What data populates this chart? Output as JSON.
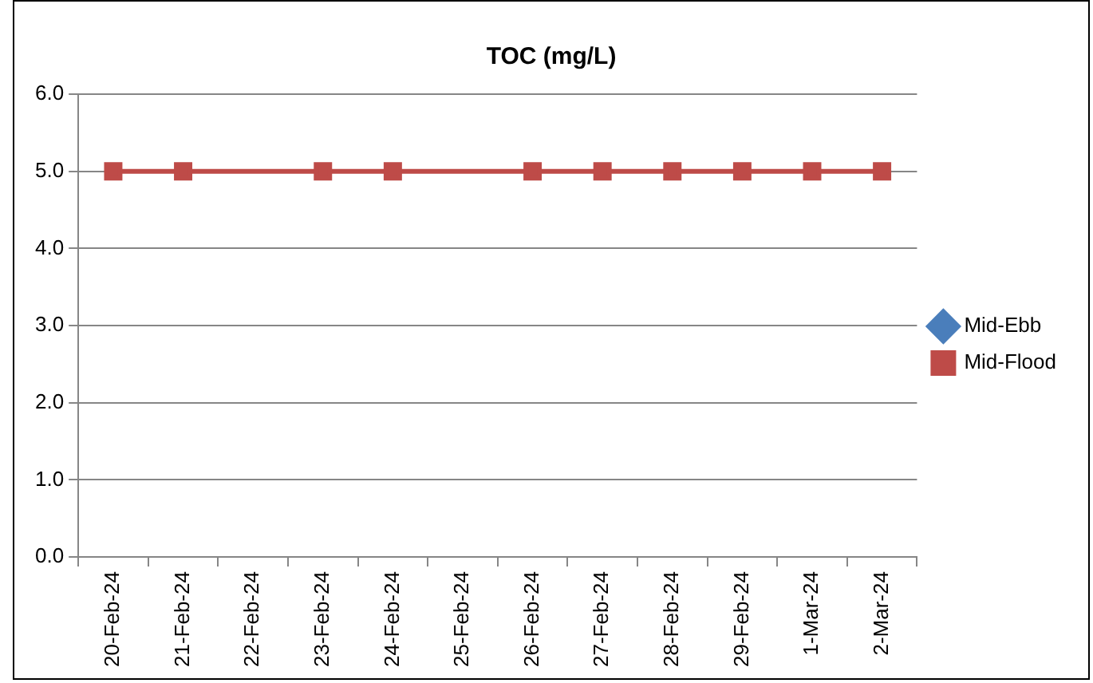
{
  "chart_data": {
    "type": "line",
    "title": "TOC (mg/L)",
    "categories": [
      "20-Feb-24",
      "21-Feb-24",
      "22-Feb-24",
      "23-Feb-24",
      "24-Feb-24",
      "25-Feb-24",
      "26-Feb-24",
      "27-Feb-24",
      "28-Feb-24",
      "29-Feb-24",
      "1-Mar-24",
      "2-Mar-24"
    ],
    "series": [
      {
        "name": "Mid-Ebb",
        "color": "#4a7ebb",
        "marker": "diamond",
        "values": [
          null,
          null,
          null,
          null,
          null,
          null,
          null,
          null,
          null,
          null,
          null,
          null
        ]
      },
      {
        "name": "Mid-Flood",
        "color": "#be4b48",
        "marker": "square",
        "values": [
          5.0,
          5.0,
          null,
          5.0,
          5.0,
          null,
          5.0,
          5.0,
          5.0,
          5.0,
          5.0,
          5.0
        ]
      }
    ],
    "ylim": [
      0,
      6
    ],
    "yticks": [
      {
        "value": 0,
        "label": "0.0"
      },
      {
        "value": 1,
        "label": "1.0"
      },
      {
        "value": 2,
        "label": "2.0"
      },
      {
        "value": 3,
        "label": "3.0"
      },
      {
        "value": 4,
        "label": "4.0"
      },
      {
        "value": 5,
        "label": "5.0"
      },
      {
        "value": 6,
        "label": "6.0"
      }
    ],
    "grid": "y",
    "legend": "right"
  }
}
